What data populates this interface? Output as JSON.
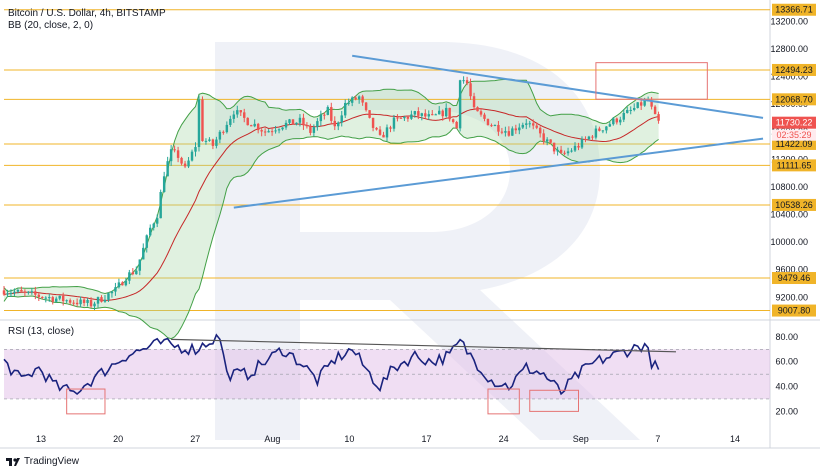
{
  "header": {
    "title": "Bitcoin / U.S. Dollar, 4h, BITSTAMP",
    "bb_label": "BB (20, close, 2, 0)",
    "rsi_label": "RSI (13, close)"
  },
  "footer": {
    "brand": "TradingView"
  },
  "colors": {
    "bull": "#26a69a",
    "bear": "#ef5350",
    "level": "#f0b429",
    "trend": "#5b9bd5",
    "bb_fill": "#a5d6a7",
    "bb_line": "#43a047",
    "rsi_line": "#1a237e",
    "rsi_band": "#e1bee7",
    "box": "#e57373",
    "watermark": "#e8ebf3"
  },
  "chart_data": [
    {
      "type": "candlestick",
      "title": "Bitcoin / U.S. Dollar, 4h, BITSTAMP",
      "indicator": "BB (20, close, 2, 0)",
      "x_ticks": [
        "13",
        "20",
        "27",
        "Aug",
        "10",
        "17",
        "24",
        "Sep",
        "7",
        "14"
      ],
      "y_ticks": [
        9200,
        9600,
        10000,
        10400,
        10800,
        11200,
        11600,
        12000,
        12400,
        12800,
        13200
      ],
      "ylim": [
        8900,
        13450
      ],
      "levels": [
        13366.71,
        12494.23,
        12068.7,
        11422.09,
        11111.65,
        10538.26,
        9479.46,
        9007.8
      ],
      "current_price": 11730.22,
      "countdown": "02:35:29",
      "path_anchors": [
        [
          0,
          9300
        ],
        [
          15,
          9180
        ],
        [
          25,
          9100
        ],
        [
          32,
          9300
        ],
        [
          35,
          9500
        ],
        [
          38,
          9600
        ],
        [
          42,
          10200
        ],
        [
          44,
          10400
        ],
        [
          46,
          11000
        ],
        [
          48,
          11300
        ],
        [
          50,
          11250
        ],
        [
          52,
          11050
        ],
        [
          55,
          11400
        ],
        [
          56,
          12050
        ],
        [
          57,
          11500
        ],
        [
          60,
          11400
        ],
        [
          63,
          11650
        ],
        [
          66,
          11900
        ],
        [
          70,
          11750
        ],
        [
          72,
          11700
        ],
        [
          75,
          11600
        ],
        [
          80,
          11700
        ],
        [
          85,
          11750
        ],
        [
          88,
          11600
        ],
        [
          91,
          11800
        ],
        [
          93,
          11900
        ],
        [
          95,
          11650
        ],
        [
          98,
          12000
        ],
        [
          102,
          12100
        ],
        [
          105,
          11750
        ],
        [
          108,
          11500
        ],
        [
          112,
          11750
        ],
        [
          118,
          11850
        ],
        [
          123,
          11800
        ],
        [
          127,
          11900
        ],
        [
          130,
          11650
        ],
        [
          131,
          12400
        ],
        [
          133,
          12300
        ],
        [
          135,
          11900
        ],
        [
          140,
          11700
        ],
        [
          145,
          11600
        ],
        [
          150,
          11750
        ],
        [
          155,
          11500
        ],
        [
          160,
          11250
        ],
        [
          165,
          11400
        ],
        [
          170,
          11600
        ],
        [
          175,
          11750
        ],
        [
          180,
          11900
        ],
        [
          183,
          12000
        ],
        [
          185,
          12050
        ],
        [
          187,
          11800
        ],
        [
          188,
          11730
        ]
      ],
      "trendlines": [
        {
          "from": [
            100,
            12700
          ],
          "to": [
            218,
            11800
          ]
        },
        {
          "from": [
            66,
            10500
          ],
          "to": [
            218,
            11500
          ]
        }
      ],
      "boxes": [
        {
          "x0": 170,
          "x1": 202,
          "y0": 12600,
          "y1": 12070
        }
      ]
    },
    {
      "type": "line",
      "title": "RSI (13, close)",
      "y_ticks": [
        20,
        40,
        60,
        80
      ],
      "ylim": [
        5,
        92
      ],
      "band": [
        30,
        70
      ],
      "anchors": [
        [
          0,
          60
        ],
        [
          5,
          45
        ],
        [
          10,
          55
        ],
        [
          15,
          40
        ],
        [
          20,
          35
        ],
        [
          25,
          45
        ],
        [
          30,
          55
        ],
        [
          35,
          65
        ],
        [
          40,
          70
        ],
        [
          45,
          75
        ],
        [
          50,
          72
        ],
        [
          55,
          70
        ],
        [
          60,
          78
        ],
        [
          62,
          80
        ],
        [
          64,
          50
        ],
        [
          70,
          50
        ],
        [
          75,
          60
        ],
        [
          80,
          70
        ],
        [
          85,
          60
        ],
        [
          90,
          45
        ],
        [
          95,
          62
        ],
        [
          100,
          70
        ],
        [
          105,
          50
        ],
        [
          108,
          40
        ],
        [
          112,
          55
        ],
        [
          118,
          65
        ],
        [
          123,
          60
        ],
        [
          128,
          65
        ],
        [
          131,
          76
        ],
        [
          134,
          65
        ],
        [
          140,
          45
        ],
        [
          145,
          40
        ],
        [
          150,
          55
        ],
        [
          155,
          50
        ],
        [
          160,
          35
        ],
        [
          165,
          50
        ],
        [
          170,
          60
        ],
        [
          175,
          65
        ],
        [
          180,
          70
        ],
        [
          184,
          74
        ],
        [
          186,
          60
        ],
        [
          188,
          52
        ]
      ],
      "trendlines": [
        {
          "from": [
            48,
            78
          ],
          "to": [
            193,
            68
          ]
        }
      ],
      "boxes": [
        {
          "x0": 18,
          "x1": 29,
          "y0": 38,
          "y1": 18
        },
        {
          "x0": 139,
          "x1": 148,
          "y0": 38,
          "y1": 18
        },
        {
          "x0": 151,
          "x1": 165,
          "y0": 37,
          "y1": 20
        }
      ]
    }
  ]
}
